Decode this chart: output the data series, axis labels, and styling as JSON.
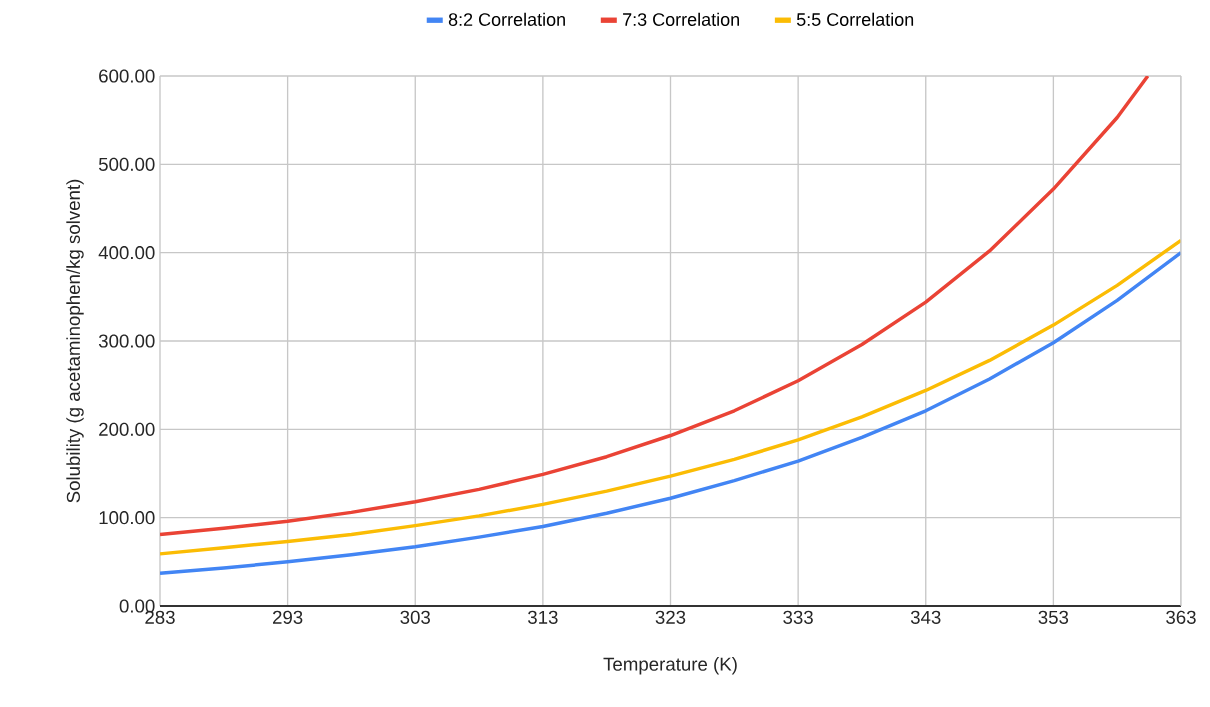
{
  "chart_data": {
    "type": "line",
    "xlabel": "Temperature (K)",
    "ylabel": "Solubility (g acetaminophen/kg solvent)",
    "x": [
      283,
      288,
      293,
      298,
      303,
      308,
      313,
      318,
      323,
      328,
      333,
      338,
      343,
      348,
      353,
      358,
      363
    ],
    "series": [
      {
        "name": "8:2 Correlation",
        "color": "#4285f4",
        "values": [
          37,
          43,
          50,
          58,
          67,
          78,
          90,
          105,
          122,
          142,
          164,
          191,
          221,
          257,
          298,
          346,
          400
        ]
      },
      {
        "name": "7:3 Correlation",
        "color": "#ea4335",
        "x": [
          283,
          288,
          293,
          298,
          303,
          308,
          313,
          318,
          323,
          328,
          333,
          338,
          343,
          348,
          353,
          358,
          360.4
        ],
        "values": [
          81,
          88,
          96,
          106,
          118,
          132,
          149,
          169,
          193,
          221,
          255,
          296,
          344,
          402,
          472,
          553,
          600
        ]
      },
      {
        "name": "5:5 Correlation",
        "color": "#fbbc04",
        "values": [
          59,
          66,
          73,
          81,
          91,
          102,
          115,
          130,
          147,
          166,
          188,
          214,
          244,
          278,
          318,
          363,
          414
        ]
      }
    ],
    "xlim": [
      283,
      363
    ],
    "xticks": [
      283,
      293,
      303,
      313,
      323,
      333,
      343,
      353,
      363
    ],
    "ylim": [
      0,
      600
    ],
    "yticks": [
      {
        "value": 0,
        "label": "0.00"
      },
      {
        "value": 100,
        "label": "100.00"
      },
      {
        "value": 200,
        "label": "200.00"
      },
      {
        "value": 300,
        "label": "300.00"
      },
      {
        "value": 400,
        "label": "400.00"
      },
      {
        "value": 500,
        "label": "500.00"
      },
      {
        "value": 600,
        "label": "600.00"
      }
    ],
    "grid": true,
    "legend": "top",
    "marker": "none",
    "line_style": "solid"
  }
}
